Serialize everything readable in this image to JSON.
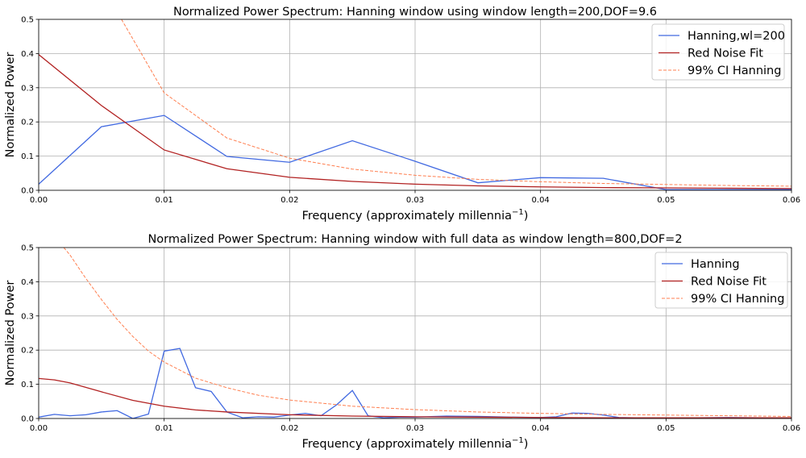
{
  "colors": {
    "hanning": "#4169e1",
    "red_noise": "#b22222",
    "ci": "#ff7f50"
  },
  "chart_data": [
    {
      "type": "line",
      "title": "Normalized Power Spectrum: Hanning window using window length=200,DOF=9.6",
      "xlabel": "Frequency (approximately millennia",
      "xlabel_sup": "−1",
      "xlabel_suffix": ")",
      "ylabel": "Normalized Power",
      "xlim": [
        0,
        0.06
      ],
      "ylim": [
        0,
        0.5
      ],
      "xticks": [
        0,
        0.01,
        0.02,
        0.03,
        0.04,
        0.05,
        0.06
      ],
      "xtick_labels": [
        "0.00",
        "0.01",
        "0.02",
        "0.03",
        "0.04",
        "0.05",
        "0.06"
      ],
      "yticks": [
        0,
        0.1,
        0.2,
        0.3,
        0.4,
        0.5
      ],
      "ytick_labels": [
        "0.0",
        "0.1",
        "0.2",
        "0.3",
        "0.4",
        "0.5"
      ],
      "grid": true,
      "legend": "upper right",
      "series": [
        {
          "name": "Hanning,wl=200",
          "style": "solid",
          "x": [
            0,
            0.005,
            0.01,
            0.015,
            0.02,
            0.025,
            0.03,
            0.035,
            0.04,
            0.045,
            0.05,
            0.055,
            0.06
          ],
          "y": [
            0.018,
            0.186,
            0.219,
            0.099,
            0.082,
            0.145,
            0.085,
            0.022,
            0.037,
            0.035,
            0.002,
            0.002,
            0.002
          ]
        },
        {
          "name": "Red Noise Fit",
          "style": "solid",
          "x": [
            0,
            0.005,
            0.01,
            0.015,
            0.02,
            0.025,
            0.03,
            0.035,
            0.04,
            0.045,
            0.05,
            0.055,
            0.06
          ],
          "y": [
            0.397,
            0.248,
            0.118,
            0.063,
            0.038,
            0.026,
            0.018,
            0.013,
            0.01,
            0.008,
            0.007,
            0.006,
            0.005
          ]
        },
        {
          "name": "99% CI Hanning",
          "style": "dashed",
          "x": [
            0.0066,
            0.01,
            0.015,
            0.02,
            0.025,
            0.03,
            0.035,
            0.04,
            0.045,
            0.05,
            0.055,
            0.06
          ],
          "y": [
            0.5,
            0.285,
            0.153,
            0.094,
            0.062,
            0.044,
            0.032,
            0.025,
            0.02,
            0.017,
            0.014,
            0.012
          ]
        }
      ]
    },
    {
      "type": "line",
      "title": "Normalized Power Spectrum: Hanning window with full data as window length=800,DOF=2",
      "xlabel": "Frequency (approximately millennia",
      "xlabel_sup": "−1",
      "xlabel_suffix": ")",
      "ylabel": "Normalized Power",
      "xlim": [
        0,
        0.06
      ],
      "ylim": [
        0,
        0.5
      ],
      "xticks": [
        0,
        0.01,
        0.02,
        0.03,
        0.04,
        0.05,
        0.06
      ],
      "xtick_labels": [
        "0.00",
        "0.01",
        "0.02",
        "0.03",
        "0.04",
        "0.05",
        "0.06"
      ],
      "yticks": [
        0,
        0.1,
        0.2,
        0.3,
        0.4,
        0.5
      ],
      "ytick_labels": [
        "0.0",
        "0.1",
        "0.2",
        "0.3",
        "0.4",
        "0.5"
      ],
      "grid": true,
      "legend": "upper right",
      "series": [
        {
          "name": "Hanning",
          "style": "solid",
          "x": [
            0,
            0.00125,
            0.0025,
            0.00375,
            0.005,
            0.00625,
            0.0075,
            0.00875,
            0.01,
            0.01125,
            0.0125,
            0.01375,
            0.015,
            0.01625,
            0.0175,
            0.01875,
            0.02,
            0.02125,
            0.0225,
            0.02375,
            0.025,
            0.02625,
            0.0275,
            0.02875,
            0.03,
            0.0325,
            0.035,
            0.0375,
            0.04,
            0.04125,
            0.0425,
            0.04375,
            0.045,
            0.04625,
            0.0475,
            0.05,
            0.0525,
            0.055,
            0.0575,
            0.06
          ],
          "y": [
            0.004,
            0.012,
            0.008,
            0.011,
            0.019,
            0.023,
            0.0,
            0.013,
            0.197,
            0.205,
            0.09,
            0.079,
            0.019,
            0.002,
            0.005,
            0.004,
            0.01,
            0.015,
            0.008,
            0.04,
            0.082,
            0.008,
            0.002,
            0.004,
            0.004,
            0.007,
            0.006,
            0.004,
            0.003,
            0.005,
            0.016,
            0.015,
            0.01,
            0.003,
            0.002,
            0.002,
            0.002,
            0.003,
            0.002,
            0.002
          ]
        },
        {
          "name": "Red Noise Fit",
          "style": "solid",
          "x": [
            0,
            0.00125,
            0.0025,
            0.005,
            0.0075,
            0.01,
            0.0125,
            0.015,
            0.02,
            0.025,
            0.03,
            0.035,
            0.04,
            0.045,
            0.05,
            0.055,
            0.06
          ],
          "y": [
            0.117,
            0.113,
            0.104,
            0.078,
            0.053,
            0.036,
            0.025,
            0.019,
            0.011,
            0.007,
            0.005,
            0.004,
            0.003,
            0.002,
            0.002,
            0.002,
            0.002
          ]
        },
        {
          "name": "99% CI Hanning",
          "style": "dashed",
          "x": [
            0.002,
            0.0025,
            0.00375,
            0.005,
            0.00625,
            0.0075,
            0.00875,
            0.01,
            0.0125,
            0.015,
            0.0175,
            0.02,
            0.025,
            0.03,
            0.035,
            0.04,
            0.045,
            0.05,
            0.055,
            0.06
          ],
          "y": [
            0.5,
            0.478,
            0.41,
            0.348,
            0.29,
            0.24,
            0.197,
            0.165,
            0.118,
            0.09,
            0.068,
            0.054,
            0.036,
            0.026,
            0.019,
            0.015,
            0.012,
            0.01,
            0.008,
            0.006
          ]
        }
      ]
    }
  ]
}
